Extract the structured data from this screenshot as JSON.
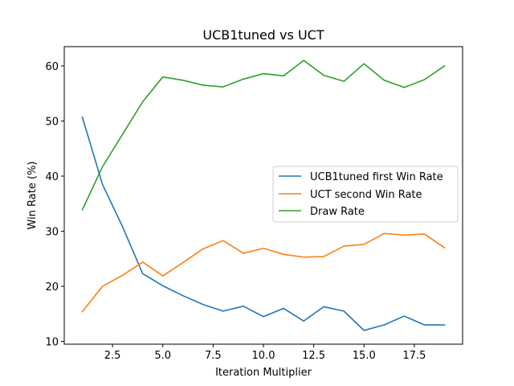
{
  "chart_data": {
    "type": "line",
    "title": "UCB1tuned vs UCT",
    "xlabel": "Iteration Multiplier",
    "ylabel": "Win Rate (%)",
    "xlim": [
      0.1,
      19.9
    ],
    "ylim": [
      9.5,
      63.5
    ],
    "xticks": [
      2.5,
      5.0,
      7.5,
      10.0,
      12.5,
      15.0,
      17.5
    ],
    "xtick_labels": [
      "2.5",
      "5.0",
      "7.5",
      "10.0",
      "12.5",
      "15.0",
      "17.5"
    ],
    "yticks": [
      10,
      20,
      30,
      40,
      50,
      60
    ],
    "ytick_labels": [
      "10",
      "20",
      "30",
      "40",
      "50",
      "60"
    ],
    "grid": false,
    "legend_position": "center-right",
    "x": [
      1,
      2,
      3,
      4,
      5,
      6,
      7,
      8,
      9,
      10,
      11,
      12,
      13,
      14,
      15,
      16,
      17,
      18,
      19
    ],
    "series": [
      {
        "name": "UCB1tuned first Win Rate",
        "color": "#1f77b4",
        "values": [
          50.7,
          38.5,
          30.8,
          22.3,
          20.1,
          18.3,
          16.7,
          15.5,
          16.4,
          14.5,
          16.0,
          13.7,
          16.3,
          15.5,
          12.0,
          13.0,
          14.6,
          13.0,
          13.0
        ]
      },
      {
        "name": "UCT second Win Rate",
        "color": "#ff7f0e",
        "values": [
          15.4,
          20.0,
          22.0,
          24.4,
          21.9,
          24.3,
          26.8,
          28.3,
          26.0,
          26.9,
          25.8,
          25.3,
          25.4,
          27.3,
          27.6,
          29.6,
          29.3,
          29.5,
          27.0
        ]
      },
      {
        "name": "Draw Rate",
        "color": "#2ca02c",
        "values": [
          33.9,
          41.7,
          47.6,
          53.5,
          58.0,
          57.4,
          56.5,
          56.2,
          57.6,
          58.6,
          58.2,
          61.0,
          58.3,
          57.2,
          60.4,
          57.4,
          56.1,
          57.5,
          60.0
        ]
      }
    ]
  }
}
